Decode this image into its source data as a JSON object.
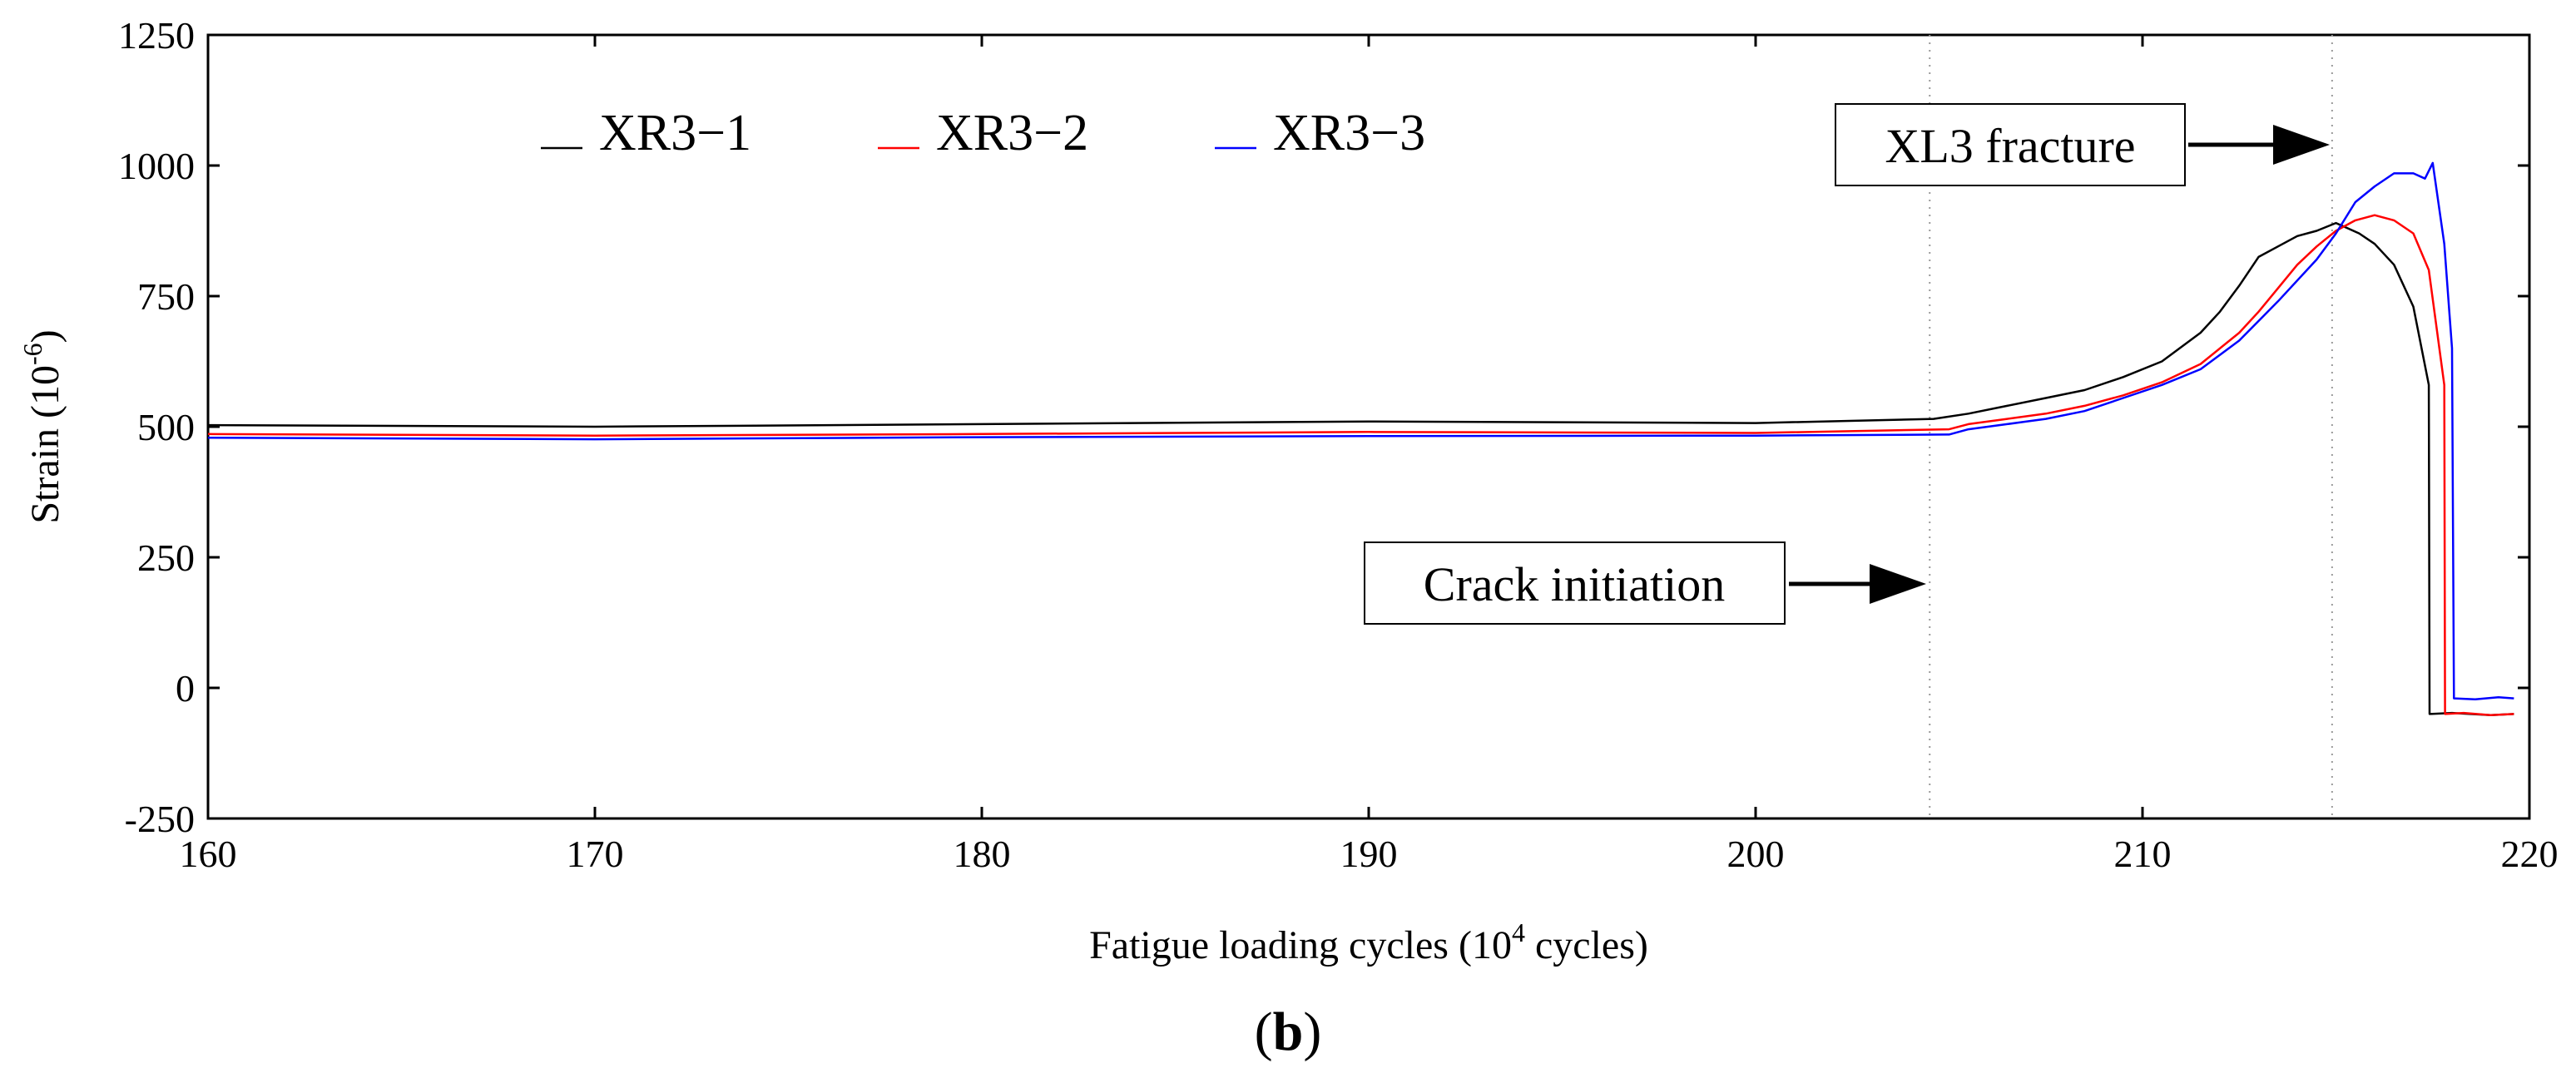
{
  "chart_data": {
    "type": "line",
    "title": "",
    "xlabel": "Fatigue loading cycles (10",
    "xlabel_sup": "4",
    "xlabel_tail": " cycles)",
    "ylabel": "Strain (10",
    "ylabel_sup": "-6",
    "ylabel_tail": ")",
    "xlim": [
      160,
      220
    ],
    "ylim": [
      -250,
      1250
    ],
    "xticks": [
      "160",
      "170",
      "180",
      "190",
      "200",
      "210",
      "220"
    ],
    "yticks": [
      "-250",
      "0",
      "250",
      "500",
      "750",
      "1000",
      "1250"
    ],
    "grid": false,
    "legend_position": "top-left",
    "panel_label": "b",
    "vlines": [
      204.5,
      214.9
    ],
    "annotations": [
      {
        "text": "Crack initiation",
        "x": 204.5,
        "y": 195
      },
      {
        "text": "XL3 fracture",
        "x": 214.9,
        "y": 1045
      }
    ],
    "colors": {
      "XR3-1": "#000000",
      "XR3-2": "#ff0000",
      "XR3-3": "#0000ff"
    },
    "series": [
      {
        "name": "XR3−1",
        "color": "#000000",
        "x": [
          160,
          170,
          180,
          190,
          200,
          204.6,
          205.5,
          206.5,
          207.5,
          208.5,
          209.5,
          210.5,
          211.5,
          212.0,
          212.5,
          213.0,
          213.5,
          214.0,
          214.5,
          215.0,
          215.3,
          215.6,
          216.0,
          216.5,
          217.0,
          217.4,
          217.42,
          218.0,
          219.0,
          219.6
        ],
        "y": [
          503,
          500,
          505,
          510,
          507,
          515,
          525,
          540,
          555,
          570,
          595,
          625,
          680,
          720,
          770,
          825,
          845,
          865,
          875,
          890,
          880,
          870,
          850,
          810,
          730,
          580,
          -50,
          -48,
          -52,
          -50
        ]
      },
      {
        "name": "XR3−2",
        "color": "#ff0000",
        "x": [
          160,
          170,
          180,
          190,
          200,
          205,
          205.5,
          206.5,
          207.5,
          208.5,
          209.5,
          210.5,
          211.5,
          212.5,
          213.0,
          213.5,
          214.0,
          214.5,
          215.0,
          215.5,
          216.0,
          216.5,
          217.0,
          217.4,
          217.8,
          217.82,
          218.3,
          219.0,
          219.6
        ],
        "y": [
          486,
          483,
          486,
          490,
          488,
          495,
          505,
          515,
          525,
          540,
          560,
          585,
          620,
          680,
          720,
          765,
          810,
          845,
          875,
          895,
          905,
          895,
          870,
          800,
          580,
          -50,
          -48,
          -52,
          -50
        ]
      },
      {
        "name": "XR3−3",
        "color": "#0000ff",
        "x": [
          160,
          170,
          180,
          190,
          200,
          205,
          205.5,
          206.5,
          207.5,
          208.5,
          209.5,
          210.5,
          211.5,
          212.5,
          213.5,
          214.5,
          215.0,
          215.5,
          216.0,
          216.5,
          217.0,
          217.3,
          217.5,
          217.8,
          218.0,
          218.05,
          218.6,
          219.2,
          219.6
        ],
        "y": [
          479,
          476,
          480,
          482,
          483,
          485,
          495,
          505,
          515,
          530,
          555,
          580,
          610,
          665,
          740,
          820,
          870,
          930,
          960,
          985,
          985,
          975,
          1005,
          850,
          650,
          -20,
          -22,
          -18,
          -20
        ]
      }
    ]
  }
}
